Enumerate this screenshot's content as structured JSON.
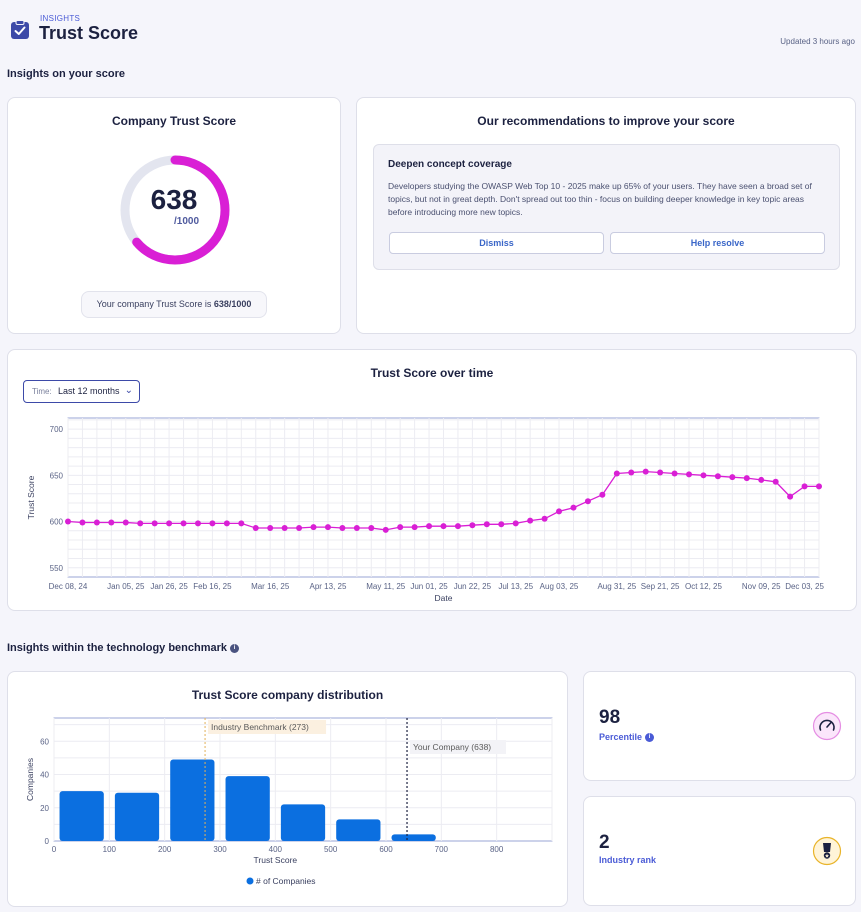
{
  "header": {
    "eyebrow": "INSIGHTS",
    "title": "Trust Score",
    "updated": "Updated 3 hours ago"
  },
  "section_score": {
    "title": "Insights on your score"
  },
  "company_score": {
    "title": "Company Trust Score",
    "value": "638",
    "max": "/1000",
    "score_fraction": 0.638,
    "statement_prefix": "Your company Trust Score is ",
    "statement_value": "638/1000"
  },
  "recommendations": {
    "title": "Our recommendations to improve your score",
    "item_title": "Deepen concept coverage",
    "item_body": "Developers studying the OWASP Web Top 10 - 2025 make up 65% of your users. They have seen a broad set of topics, but not in great depth. Don't spread out too thin - focus on building deeper knowledge in key topic areas before introducing more new topics.",
    "dismiss_label": "Dismiss",
    "resolve_label": "Help resolve"
  },
  "colors": {
    "accent": "#d91fd5",
    "bar": "#0b6fe0",
    "track": "#e3e5ef",
    "brand": "#3d4aa8"
  },
  "over_time": {
    "title": "Trust Score over time",
    "time_label": "Time:",
    "time_value": "Last 12 months"
  },
  "section_benchmark": {
    "title": "Insights within the technology benchmark"
  },
  "distribution": {
    "title": "Trust Score company distribution",
    "legend": "# of Companies"
  },
  "percentile": {
    "value": "98",
    "label": "Percentile"
  },
  "industry_rank": {
    "value": "2",
    "label": "Industry rank"
  },
  "chart_data": [
    {
      "type": "line",
      "title": "Trust Score over time",
      "xlabel": "Date",
      "ylabel": "Trust Score",
      "ylim": [
        540,
        712
      ],
      "yticks": [
        550,
        600,
        650,
        700
      ],
      "xtick_labels": [
        "Dec 08, 24",
        "Jan 05, 25",
        "Jan 26, 25",
        "Feb 16, 25",
        "Mar 16, 25",
        "Apr 13, 25",
        "May 11, 25",
        "Jun 01, 25",
        "Jun 22, 25",
        "Jul 13, 25",
        "Aug 03, 25",
        "Aug 31, 25",
        "Sep 21, 25",
        "Oct 12, 25",
        "Nov 09, 25",
        "Dec 03, 25"
      ],
      "xtick_index": [
        0,
        4,
        7,
        10,
        14,
        18,
        22,
        25,
        28,
        31,
        34,
        38,
        41,
        44,
        48,
        51
      ],
      "series": [
        {
          "name": "Trust Score",
          "values": [
            600,
            599,
            599,
            599,
            599,
            598,
            598,
            598,
            598,
            598,
            598,
            598,
            598,
            593,
            593,
            593,
            593,
            594,
            594,
            593,
            593,
            593,
            591,
            594,
            594,
            595,
            595,
            595,
            596,
            597,
            597,
            598,
            601,
            603,
            611,
            615,
            622,
            629,
            652,
            653,
            654,
            653,
            652,
            651,
            650,
            649,
            648,
            647,
            645,
            643,
            627,
            638,
            638
          ]
        }
      ]
    },
    {
      "type": "bar",
      "title": "Trust Score company distribution",
      "xlabel": "Trust Score",
      "ylabel": "Companies",
      "xlim": [
        0,
        900
      ],
      "ylim": [
        0,
        74
      ],
      "xticks": [
        0,
        100,
        200,
        300,
        400,
        500,
        600,
        700,
        800
      ],
      "yticks": [
        0,
        20,
        40,
        60
      ],
      "bin_width": 100,
      "bin_starts": [
        0,
        100,
        200,
        300,
        400,
        500,
        600
      ],
      "values": [
        30,
        29,
        49,
        39,
        22,
        13,
        4
      ],
      "legend": "# of Companies",
      "annotations": [
        {
          "label": "Industry Benchmark (273)",
          "x": 273
        },
        {
          "label": "Your Company (638)",
          "x": 638
        }
      ]
    }
  ]
}
